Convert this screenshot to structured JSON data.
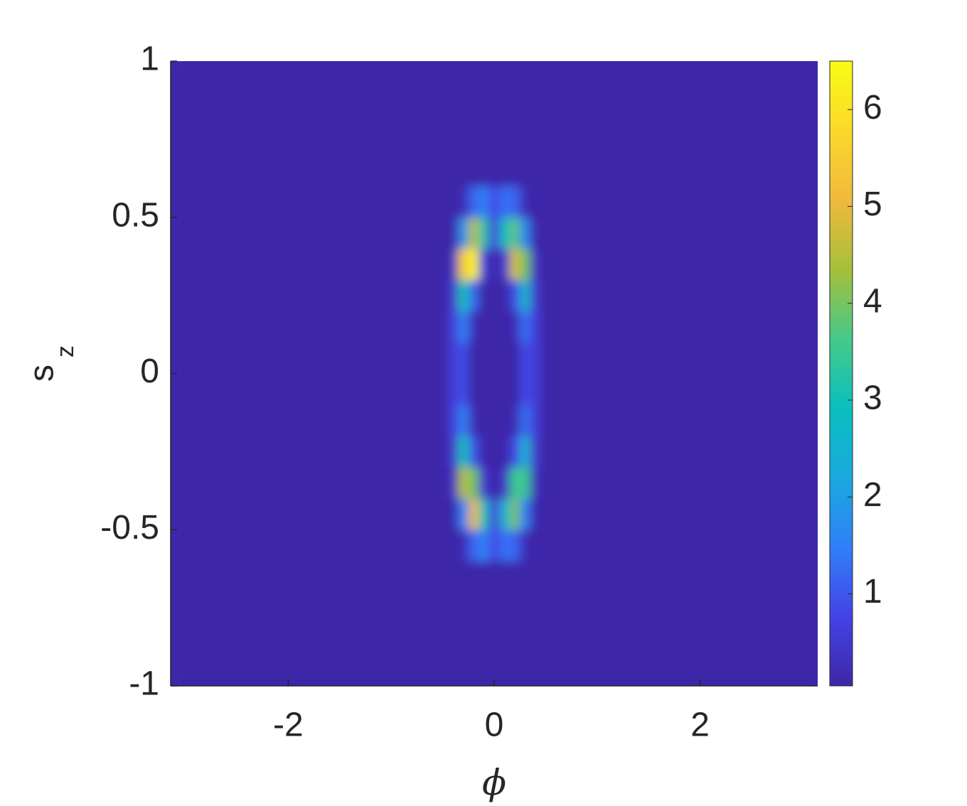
{
  "chart_data": {
    "type": "heatmap",
    "xlabel": "ϕ",
    "ylabel": {
      "base": "s",
      "sub": "z"
    },
    "xlim": [
      -3.1416,
      3.1416
    ],
    "ylim": [
      -1,
      1
    ],
    "xticks": [
      -2,
      0,
      2
    ],
    "yticks": [
      -1,
      -0.5,
      0,
      0.5,
      1
    ],
    "xbins": [
      -3.1416,
      -0.45,
      -0.35,
      -0.25,
      -0.15,
      -0.05,
      0.05,
      0.15,
      0.25,
      0.35,
      0.45,
      3.1416
    ],
    "ybins": [
      -1,
      -0.6,
      -0.5,
      -0.4,
      -0.3,
      -0.2,
      -0.1,
      0,
      0.1,
      0.2,
      0.3,
      0.4,
      0.5,
      0.6,
      1
    ],
    "z": [
      [
        0.05,
        0.05,
        0.05,
        0.05,
        0.05,
        0.05,
        0.05,
        0.05,
        0.05,
        0.05,
        0.05
      ],
      [
        0.05,
        0.05,
        0.2,
        1.2,
        1.5,
        0.8,
        1.3,
        1.2,
        0.2,
        0.05,
        0.05
      ],
      [
        0.05,
        0.1,
        1.5,
        5.0,
        3.0,
        0.6,
        2.5,
        4.0,
        1.5,
        0.1,
        0.05
      ],
      [
        0.05,
        0.3,
        4.5,
        4.0,
        0.5,
        0.05,
        0.4,
        3.5,
        3.5,
        0.3,
        0.05
      ],
      [
        0.05,
        0.5,
        3.0,
        1.0,
        0.05,
        0.05,
        0.05,
        0.8,
        2.5,
        0.5,
        0.05
      ],
      [
        0.05,
        0.6,
        1.5,
        0.2,
        0.05,
        0.05,
        0.05,
        0.2,
        1.3,
        0.6,
        0.05
      ],
      [
        0.05,
        0.6,
        0.9,
        0.05,
        0.05,
        0.05,
        0.05,
        0.05,
        0.8,
        0.6,
        0.05
      ],
      [
        0.05,
        0.6,
        0.9,
        0.05,
        0.05,
        0.05,
        0.05,
        0.05,
        0.8,
        0.6,
        0.05
      ],
      [
        0.05,
        0.6,
        1.5,
        0.2,
        0.05,
        0.05,
        0.05,
        0.2,
        1.3,
        0.6,
        0.05
      ],
      [
        0.05,
        0.5,
        3.0,
        1.2,
        0.05,
        0.05,
        0.05,
        0.9,
        2.6,
        0.5,
        0.05
      ],
      [
        0.05,
        0.3,
        5.5,
        6.3,
        0.6,
        0.05,
        0.5,
        4.8,
        4.0,
        0.3,
        0.05
      ],
      [
        0.05,
        0.1,
        1.8,
        4.5,
        3.2,
        0.6,
        2.8,
        3.8,
        1.6,
        0.1,
        0.05
      ],
      [
        0.05,
        0.05,
        0.2,
        1.2,
        1.5,
        0.8,
        1.3,
        1.2,
        0.2,
        0.05,
        0.05
      ],
      [
        0.05,
        0.05,
        0.05,
        0.05,
        0.05,
        0.05,
        0.05,
        0.05,
        0.05,
        0.05,
        0.05
      ]
    ],
    "clim": [
      0.05,
      6.5
    ],
    "cticks": [
      1,
      2,
      3,
      4,
      5,
      6
    ],
    "colormap": [
      "#3e26a8",
      "#4443e6",
      "#2f80f8",
      "#1aa9df",
      "#0abfbd",
      "#47c98a",
      "#a6c03a",
      "#f0b93d",
      "#fad92a",
      "#f9fb15"
    ]
  }
}
